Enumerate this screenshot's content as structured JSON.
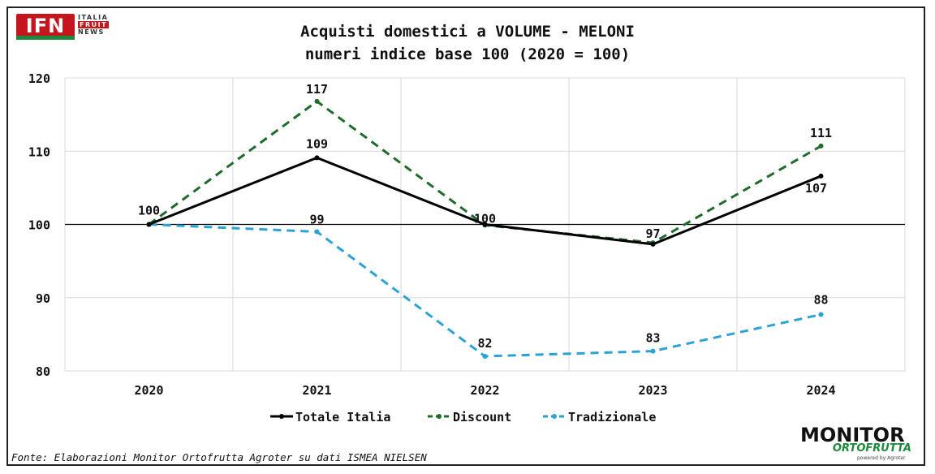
{
  "chart_data": {
    "type": "line",
    "title": "Acquisti domestici a VOLUME - MELONI",
    "subtitle": "numeri indice base 100 (2020 = 100)",
    "categories": [
      "2020",
      "2021",
      "2022",
      "2023",
      "2024"
    ],
    "ylim": [
      80,
      120
    ],
    "yticks": [
      80,
      90,
      100,
      110,
      120
    ],
    "grid": true,
    "legend_position": "bottom",
    "series": [
      {
        "name": "Totale Italia",
        "values": [
          100,
          109.1,
          100,
          97.3,
          106.6
        ],
        "labels": [
          "100",
          "109",
          "100",
          "97",
          "107"
        ],
        "color": "#000000",
        "dash": "solid"
      },
      {
        "name": "Discount",
        "values": [
          100,
          116.8,
          99.9,
          97.5,
          110.7
        ],
        "labels": [
          "",
          "117",
          "",
          "",
          "111"
        ],
        "color": "#1e6b2a",
        "dash": "dashed"
      },
      {
        "name": "Tradizionale",
        "values": [
          100,
          99,
          82,
          82.7,
          87.7
        ],
        "labels": [
          "",
          "99",
          "82",
          "83",
          "88"
        ],
        "color": "#2ba2d6",
        "dash": "dashed"
      }
    ]
  },
  "source": "Fonte: Elaborazioni Monitor Ortofrutta Agroter su dati ISMEA NIELSEN",
  "logos": {
    "ifn": {
      "mark": "IFN",
      "line1": "ITALIA",
      "line2": "FRUIT",
      "line3": "NEWS"
    },
    "monitor": {
      "line1": "MONITOR",
      "line2": "ORTOFRUTTA",
      "line3": "powered by Agroter"
    }
  }
}
